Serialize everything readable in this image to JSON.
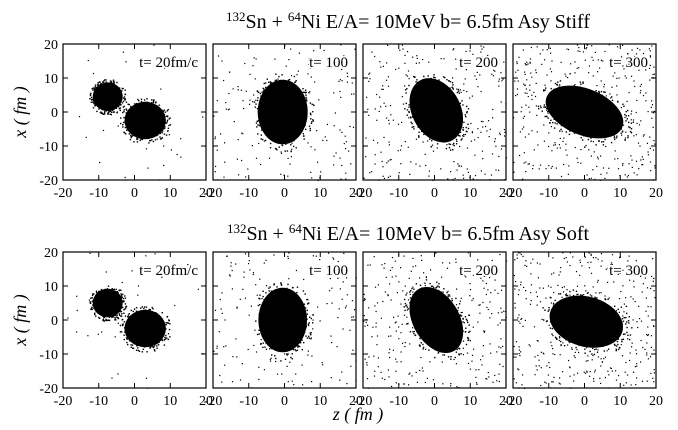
{
  "chart_data": [
    {
      "type": "scatter",
      "title": {
        "a1": "132",
        "a2": "Sn + ",
        "b1": "64",
        "b2": "Ni  E/A= 10MeV  b= 6.5fm  Asy Stiff"
      },
      "ylabel": "x ( fm )",
      "xlim": [
        -20,
        20
      ],
      "ylim": [
        -20,
        20
      ],
      "xticks": [
        "-20",
        "-10",
        "0",
        "10",
        "20"
      ],
      "yticks": [
        "20",
        "10",
        "0",
        "-10",
        "-20"
      ],
      "panels": [
        {
          "label": "t= 20fm/c",
          "blobs": [
            {
              "cx": -7.5,
              "cy": 4.5,
              "rx": 4.2,
              "ry": 4.2,
              "angle": 0
            },
            {
              "cx": 3.0,
              "cy": -2.5,
              "rx": 5.8,
              "ry": 5.5,
              "angle": 0
            }
          ],
          "scatter": 0.2
        },
        {
          "label": "t= 100",
          "blobs": [
            {
              "cx": -0.5,
              "cy": 0.0,
              "rx": 7.0,
              "ry": 9.5,
              "angle": 0
            }
          ],
          "scatter": 1.0
        },
        {
          "label": "t= 200",
          "blobs": [
            {
              "cx": 0.5,
              "cy": 0.5,
              "rx": 6.8,
              "ry": 10.0,
              "angle": 28
            }
          ],
          "scatter": 1.6
        },
        {
          "label": "t= 300",
          "blobs": [
            {
              "cx": 0.0,
              "cy": 0.0,
              "rx": 6.5,
              "ry": 12.0,
              "angle": 68
            }
          ],
          "scatter": 2.4
        }
      ]
    },
    {
      "type": "scatter",
      "title": {
        "a1": "132",
        "a2": "Sn + ",
        "b1": "64",
        "b2": "Ni  E/A= 10MeV  b= 6.5fm  Asy Soft"
      },
      "xlabel": "z ( fm )",
      "ylabel": "x ( fm )",
      "xlim": [
        -20,
        20
      ],
      "ylim": [
        -20,
        20
      ],
      "xticks": [
        "-20",
        "-10",
        "0",
        "10",
        "20"
      ],
      "yticks": [
        "20",
        "10",
        "0",
        "-10",
        "-20"
      ],
      "panels": [
        {
          "label": "t= 20fm/c",
          "blobs": [
            {
              "cx": -7.5,
              "cy": 5.0,
              "rx": 4.2,
              "ry": 4.2,
              "angle": 0
            },
            {
              "cx": 3.0,
              "cy": -2.5,
              "rx": 5.8,
              "ry": 5.5,
              "angle": 0
            }
          ],
          "scatter": 0.2
        },
        {
          "label": "t= 100",
          "blobs": [
            {
              "cx": -0.5,
              "cy": 0.0,
              "rx": 6.8,
              "ry": 9.5,
              "angle": 0
            }
          ],
          "scatter": 1.0
        },
        {
          "label": "t= 200",
          "blobs": [
            {
              "cx": 0.5,
              "cy": 0.0,
              "rx": 6.5,
              "ry": 10.5,
              "angle": 30
            }
          ],
          "scatter": 1.8
        },
        {
          "label": "t= 300",
          "blobs": [
            {
              "cx": 0.5,
              "cy": -0.5,
              "rx": 7.0,
              "ry": 11.0,
              "angle": 75
            }
          ],
          "scatter": 2.4
        }
      ]
    }
  ]
}
